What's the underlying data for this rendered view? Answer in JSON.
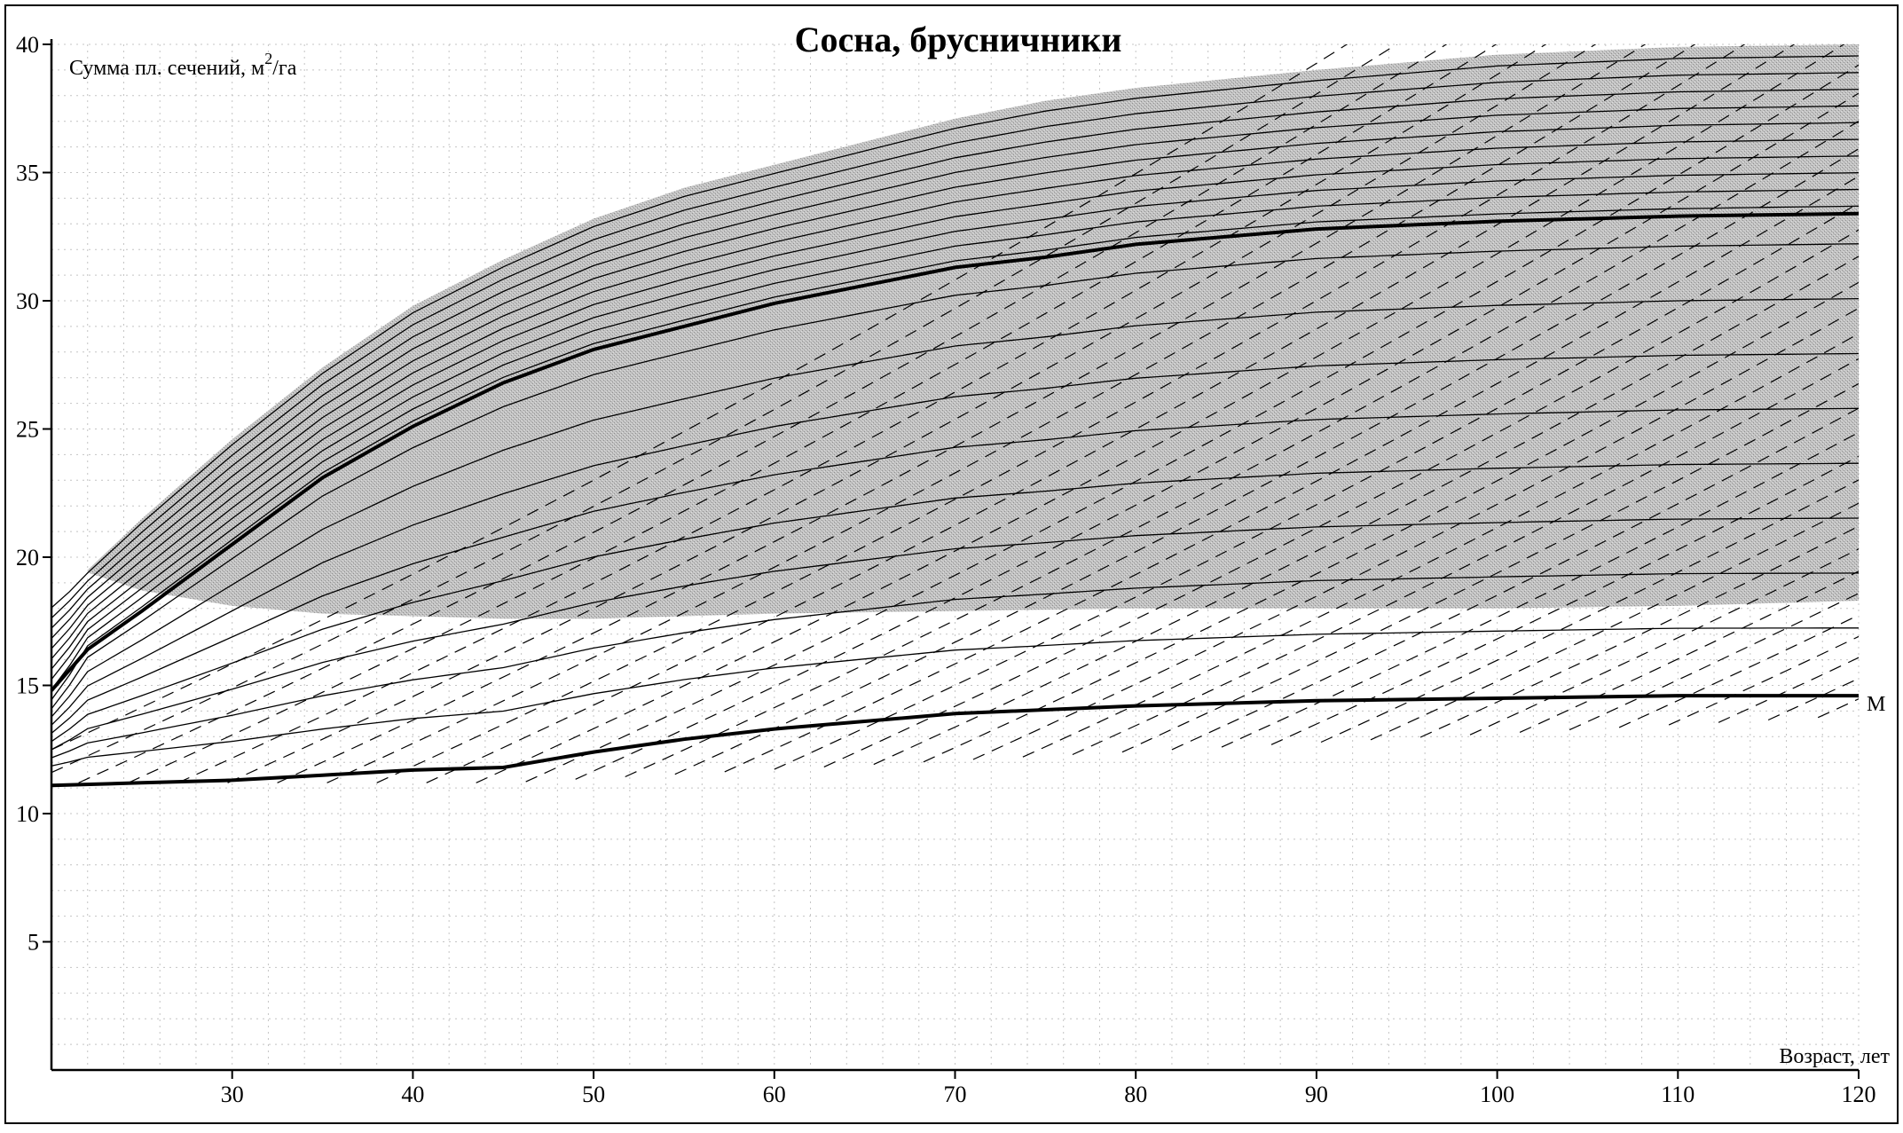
{
  "chart_data": {
    "type": "line",
    "title": "Сосна, брусничники",
    "ylabel": "Сумма пл. сечений, м²/га",
    "ylabel_main": "Сумма пл. сечений, м",
    "ylabel_sup": "2",
    "ylabel_tail": "/га",
    "xlabel": "Возраст, лет",
    "xlim": [
      20,
      120
    ],
    "ylim": [
      0,
      40
    ],
    "x_ticks": [
      30,
      40,
      50,
      60,
      70,
      80,
      90,
      100,
      110,
      120
    ],
    "y_ticks": [
      5,
      10,
      15,
      20,
      25,
      30,
      35,
      40
    ],
    "grid": true,
    "band": {
      "upper": [
        [
          22,
          19.5
        ],
        [
          25,
          21.5
        ],
        [
          30,
          24.6
        ],
        [
          35,
          27.4
        ],
        [
          40,
          29.8
        ],
        [
          45,
          31.6
        ],
        [
          50,
          33.2
        ],
        [
          55,
          34.4
        ],
        [
          60,
          35.3
        ],
        [
          65,
          36.2
        ],
        [
          70,
          37.1
        ],
        [
          75,
          37.8
        ],
        [
          80,
          38.3
        ],
        [
          90,
          39
        ],
        [
          100,
          39.6
        ],
        [
          110,
          39.9
        ],
        [
          120,
          40
        ]
      ],
      "lower": [
        [
          22,
          19.4
        ],
        [
          25,
          18.7
        ],
        [
          30,
          18.1
        ],
        [
          35,
          17.8
        ],
        [
          40,
          17.7
        ],
        [
          45,
          17.6
        ],
        [
          50,
          17.6
        ],
        [
          55,
          17.7
        ],
        [
          60,
          17.8
        ],
        [
          70,
          17.9
        ],
        [
          80,
          18
        ],
        [
          90,
          18
        ],
        [
          100,
          18
        ],
        [
          110,
          18.1
        ],
        [
          120,
          18.3
        ]
      ]
    },
    "series": [
      {
        "name": "",
        "style": "thick",
        "points": [
          [
            20,
            14.8
          ],
          [
            22,
            16.4
          ],
          [
            25,
            17.9
          ],
          [
            30,
            20.5
          ],
          [
            35,
            23.1
          ],
          [
            40,
            25.1
          ],
          [
            45,
            26.8
          ],
          [
            50,
            28.1
          ],
          [
            55,
            29
          ],
          [
            60,
            29.9
          ],
          [
            65,
            30.6
          ],
          [
            70,
            31.3
          ],
          [
            75,
            31.7
          ],
          [
            80,
            32.2
          ],
          [
            85,
            32.5
          ],
          [
            90,
            32.8
          ],
          [
            100,
            33.1
          ],
          [
            110,
            33.3
          ],
          [
            120,
            33.4
          ]
        ]
      },
      {
        "name": "М",
        "style": "thick",
        "points": [
          [
            20,
            11.1
          ],
          [
            25,
            11.2
          ],
          [
            30,
            11.3
          ],
          [
            35,
            11.5
          ],
          [
            40,
            11.7
          ],
          [
            45,
            11.8
          ],
          [
            50,
            12.4
          ],
          [
            55,
            12.9
          ],
          [
            60,
            13.3
          ],
          [
            65,
            13.6
          ],
          [
            70,
            13.9
          ],
          [
            80,
            14.2
          ],
          [
            90,
            14.4
          ],
          [
            100,
            14.5
          ],
          [
            110,
            14.6
          ],
          [
            120,
            14.6
          ]
        ]
      }
    ],
    "thin_curves_count": 18,
    "dashed_lines_count": 44,
    "colors": {
      "band": "#b5b5b5",
      "curve": "#000000",
      "grid": "#c4c4c4"
    }
  }
}
